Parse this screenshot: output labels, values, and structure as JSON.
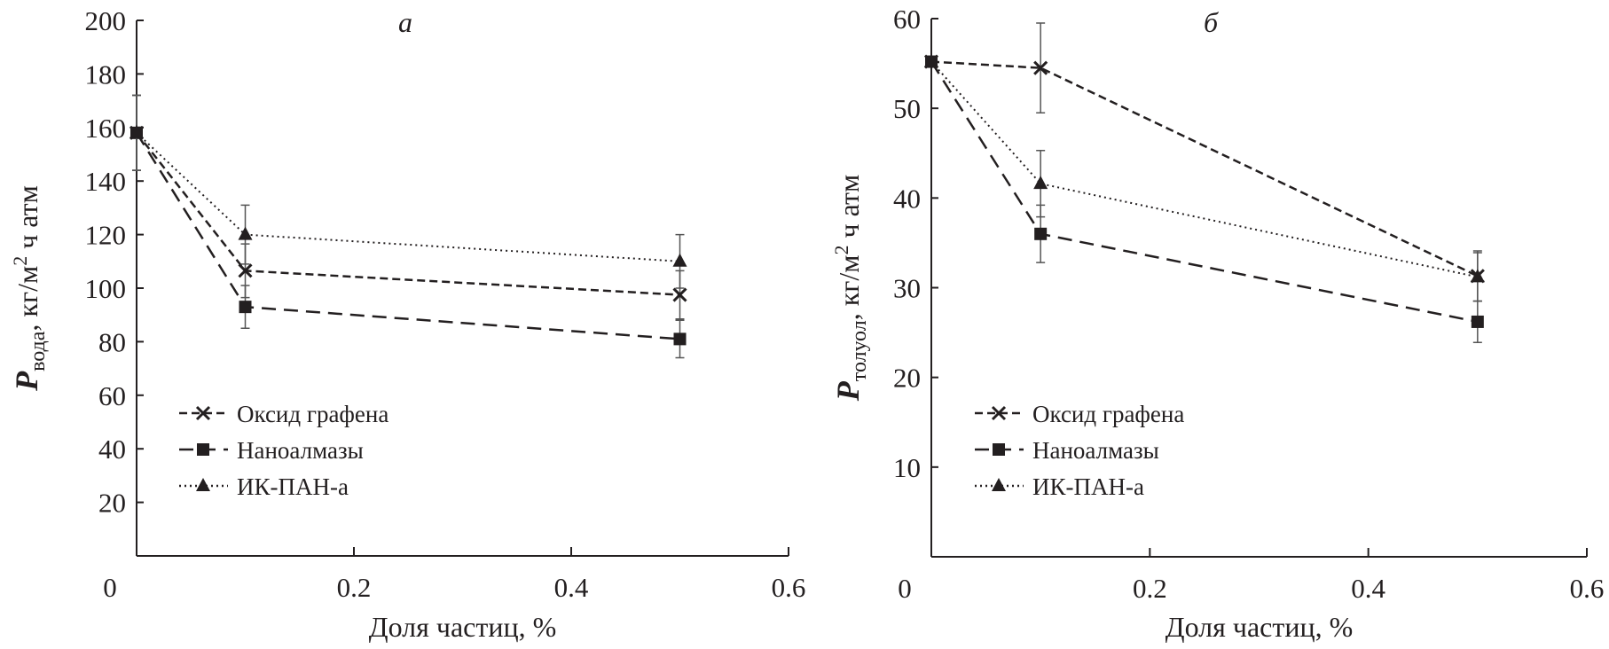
{
  "chart_data": [
    {
      "type": "line",
      "title": "а",
      "xlabel": "Доля частиц, %",
      "ylabel": {
        "symbol": "P",
        "subscript": "вода",
        "unit_pre": ", кг/м",
        "unit_sup": "2",
        "unit_post": " ч атм"
      },
      "xlim": [
        0,
        0.6
      ],
      "ylim": [
        0,
        200
      ],
      "xticks": [
        "0",
        "0.2",
        "0.4",
        "0.6"
      ],
      "xtick_values": [
        0,
        0.2,
        0.4,
        0.6
      ],
      "yticks": [
        "20",
        "40",
        "60",
        "80",
        "100",
        "120",
        "140",
        "160",
        "180",
        "200"
      ],
      "ytick_values": [
        20,
        40,
        60,
        80,
        100,
        120,
        140,
        160,
        180,
        200
      ],
      "grid": false,
      "legend_position": "bottom-left",
      "x": [
        0,
        0.1,
        0.5
      ],
      "series": [
        {
          "name": "Оксид графена",
          "marker": "x",
          "dash": "dashed",
          "values": [
            158,
            106.5,
            97.5
          ],
          "errors": [
            14,
            10,
            9
          ]
        },
        {
          "name": "Наноалмазы",
          "marker": "square",
          "dash": "long-dashed",
          "values": [
            158,
            93,
            81
          ],
          "errors": [
            14,
            8,
            7
          ]
        },
        {
          "name": "ИК-ПАН-а",
          "marker": "triangle",
          "dash": "dotted",
          "values": [
            158,
            120,
            110
          ],
          "errors": [
            14,
            11,
            10
          ]
        }
      ]
    },
    {
      "type": "line",
      "title": "б",
      "xlabel": "Доля частиц, %",
      "ylabel": {
        "symbol": "P",
        "subscript": "толуол",
        "unit_pre": ", кг/м",
        "unit_sup": "2",
        "unit_post": " ч атм"
      },
      "xlim": [
        0,
        0.6
      ],
      "ylim": [
        0,
        60
      ],
      "xticks": [
        "0",
        "0.2",
        "0.4",
        "0.6"
      ],
      "xtick_values": [
        0,
        0.2,
        0.4,
        0.6
      ],
      "yticks": [
        "10",
        "20",
        "30",
        "40",
        "50",
        "60"
      ],
      "ytick_values": [
        10,
        20,
        30,
        40,
        50,
        60
      ],
      "grid": false,
      "legend_position": "bottom-left",
      "x": [
        0,
        0.1,
        0.5
      ],
      "series": [
        {
          "name": "Оксид графена",
          "marker": "x",
          "dash": "dashed",
          "values": [
            55.2,
            54.5,
            31.3
          ],
          "errors": [
            0,
            5,
            2.8
          ]
        },
        {
          "name": "Наноалмазы",
          "marker": "square",
          "dash": "long-dashed",
          "values": [
            55.2,
            36,
            26.2
          ],
          "errors": [
            0,
            3.2,
            2.3
          ]
        },
        {
          "name": "ИК-ПАН-а",
          "marker": "triangle",
          "dash": "dotted",
          "values": [
            55.2,
            41.6,
            31.2
          ],
          "errors": [
            0,
            3.7,
            2.7
          ]
        }
      ]
    }
  ],
  "colors": {
    "ink": "#231f20"
  }
}
